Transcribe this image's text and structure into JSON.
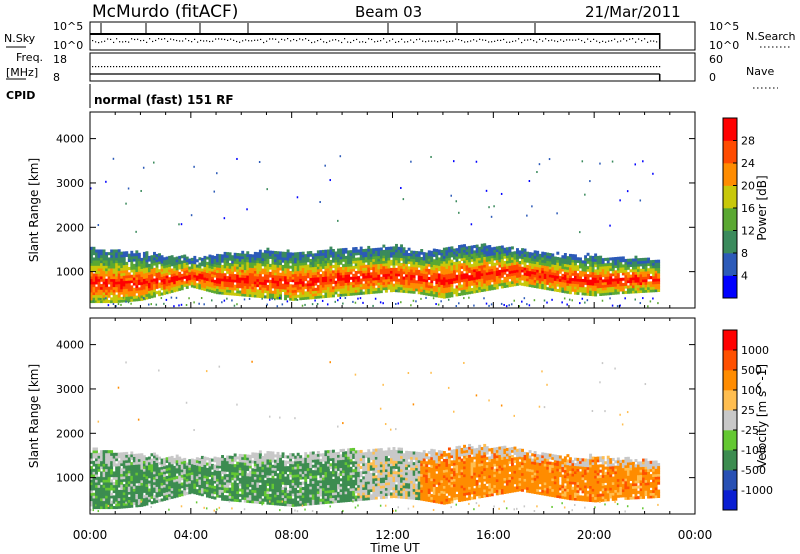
{
  "header": {
    "station": "McMurdo (fitACF)",
    "beam": "Beam 03",
    "date": "21/Mar/2011"
  },
  "panels": {
    "nsky": {
      "label": "N.Sky",
      "ticks": [
        "10^5",
        "10^0"
      ],
      "right_ticks": [
        "10^5",
        "10^0"
      ],
      "right_label": "N.Search"
    },
    "freq": {
      "label_line1": "Freq.",
      "label_line2": "[MHz]",
      "ticks": [
        "18",
        "8"
      ],
      "right_ticks": [
        "60",
        "0"
      ],
      "right_label": "Nave"
    },
    "cpid": {
      "label": "CPID",
      "value": "normal (fast) 151 RF"
    }
  },
  "colors": {
    "power": [
      "#0000ff",
      "#2c5ab8",
      "#3a8a5c",
      "#5aa832",
      "#c8c80a",
      "#ff8c00",
      "#ff4b00",
      "#ff0000"
    ],
    "velocity": [
      "#ff0000",
      "#ff5000",
      "#ff8c00",
      "#ffbe50",
      "#c8c8c8",
      "#64c832",
      "#3c8c50",
      "#2850b4",
      "#0a1ed2"
    ]
  },
  "chart_data": [
    {
      "type": "heatmap",
      "name": "power",
      "ylabel": "Slant Range [km]",
      "xlabel": "Time UT",
      "xlim": [
        "00:00",
        "24:00"
      ],
      "ylim": [
        180,
        4600
      ],
      "x_ticks": [
        "00:00",
        "04:00",
        "08:00",
        "12:00",
        "16:00",
        "20:00",
        "00:00"
      ],
      "y_ticks": [
        1000,
        2000,
        3000,
        4000
      ],
      "colorbar": {
        "label": "Power [dB]",
        "ticks": [
          "4",
          "8",
          "12",
          "16",
          "20",
          "24",
          "28"
        ],
        "range": [
          0,
          30
        ]
      },
      "band": {
        "hours": [
          0,
          1,
          2,
          3,
          4,
          5,
          6,
          7,
          8,
          9,
          10,
          11,
          12,
          13,
          14,
          15,
          16,
          17,
          18,
          19,
          20,
          21,
          22.5
        ],
        "lower_km": [
          300,
          300,
          350,
          500,
          650,
          500,
          450,
          400,
          350,
          400,
          450,
          500,
          550,
          500,
          400,
          500,
          600,
          700,
          600,
          500,
          450,
          500,
          550
        ],
        "upper_km": [
          1500,
          1450,
          1400,
          1350,
          1300,
          1350,
          1400,
          1450,
          1400,
          1450,
          1500,
          1500,
          1550,
          1450,
          1500,
          1600,
          1550,
          1500,
          1400,
          1350,
          1350,
          1300,
          1250
        ]
      },
      "x_end_hours": 22.6
    },
    {
      "type": "heatmap",
      "name": "velocity",
      "ylabel": "Slant Range [km]",
      "xlabel": "Time UT",
      "xlim": [
        "00:00",
        "24:00"
      ],
      "ylim": [
        180,
        4600
      ],
      "x_ticks": [
        "00:00",
        "04:00",
        "08:00",
        "12:00",
        "16:00",
        "20:00",
        "00:00"
      ],
      "y_ticks": [
        1000,
        2000,
        3000,
        4000
      ],
      "colorbar": {
        "label": "Velocity [m s^-1]",
        "ticks": [
          "1000",
          "500",
          "100",
          "25",
          "-25",
          "-100",
          "-500",
          "-1000"
        ]
      },
      "x_end_hours": 22.6
    }
  ]
}
